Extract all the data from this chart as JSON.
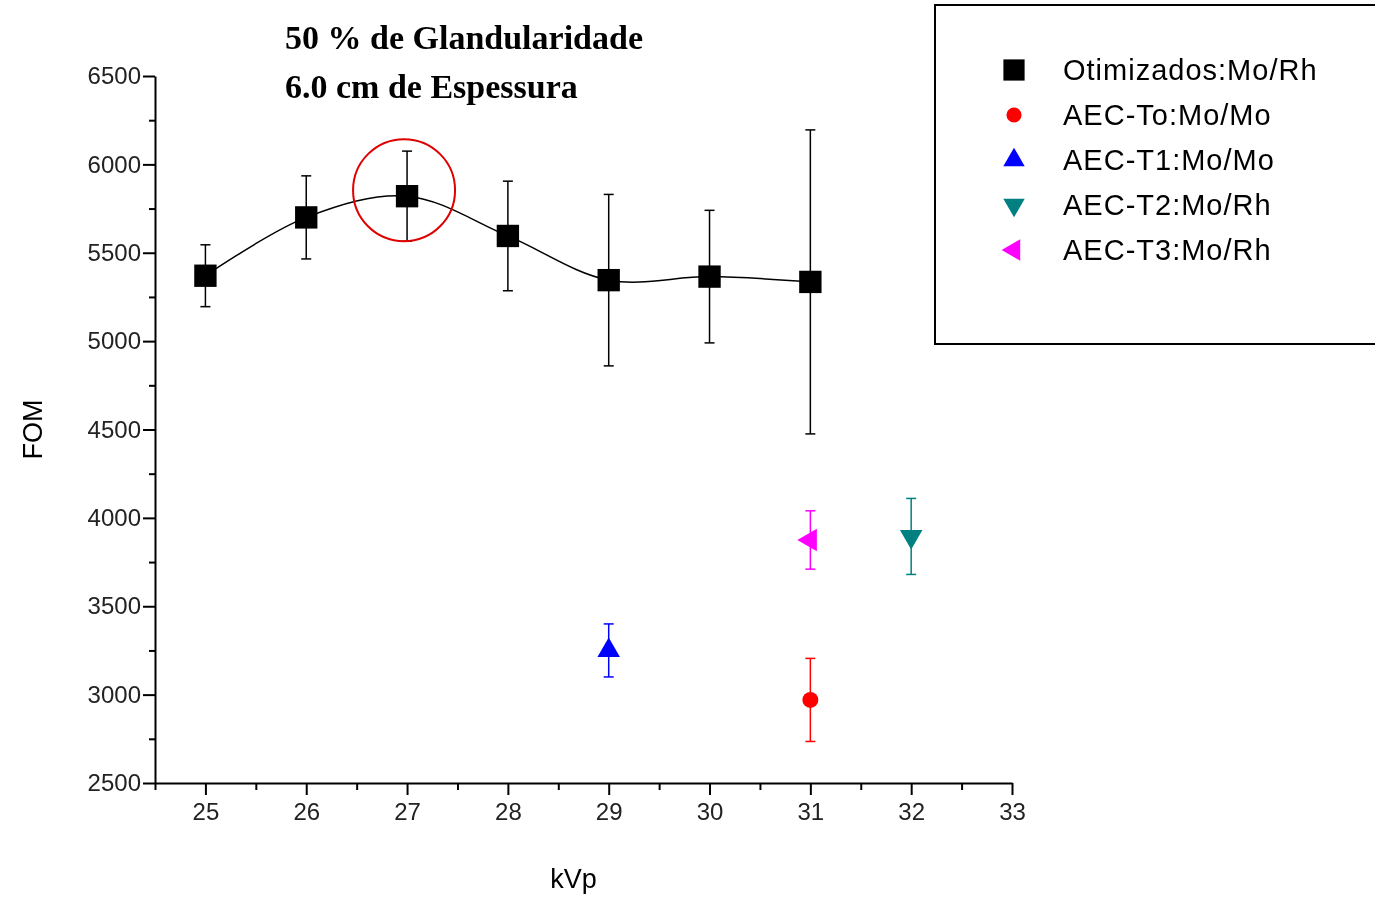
{
  "chart_data": {
    "type": "scatter",
    "title": "50 % de Glandularidade",
    "subtitle": "6.0 cm de Espessura",
    "xlabel": "kVp",
    "ylabel": "FOM",
    "xlim": [
      24.5,
      33
    ],
    "xticks": [
      {
        "value": 24.5,
        "label": null
      },
      25,
      {
        "value": 25.5,
        "label": null
      },
      26,
      {
        "value": 26.5,
        "label": null
      },
      27,
      {
        "value": 27.5,
        "label": null
      },
      28,
      {
        "value": 28.5,
        "label": null
      },
      29,
      {
        "value": 29.5,
        "label": null
      },
      30,
      {
        "value": 30.5,
        "label": null
      },
      31,
      {
        "value": 31.5,
        "label": null
      },
      32,
      {
        "value": 32.5,
        "label": null
      },
      33
    ],
    "ylim": [
      2500,
      6500
    ],
    "yticks": [
      2500,
      {
        "value": 2750,
        "label": null
      },
      3000,
      {
        "value": 3250,
        "label": null
      },
      3500,
      {
        "value": 3750,
        "label": null
      },
      4000,
      {
        "value": 4250,
        "label": null
      },
      4500,
      {
        "value": 4750,
        "label": null
      },
      5000,
      {
        "value": 5250,
        "label": null
      },
      5500,
      {
        "value": 5750,
        "label": null
      },
      6000,
      {
        "value": 6250,
        "label": null
      },
      6500
    ],
    "grid": false,
    "legend": "top right",
    "series": [
      {
        "name": "Otimizados:Mo/Rh",
        "type": "line",
        "marker": "square",
        "color": "#000000",
        "x": [
          25,
          26,
          27,
          28,
          29,
          30,
          31
        ],
        "values": [
          5370,
          5700,
          5820,
          5595,
          5345,
          5365,
          5335
        ],
        "errors": [
          175,
          235,
          255,
          310,
          485,
          375,
          860
        ]
      },
      {
        "name": "AEC-To:Mo/Mo",
        "marker": "circle",
        "color": "#ff0000",
        "x": [
          31
        ],
        "values": [
          2970
        ],
        "errors": [
          235
        ]
      },
      {
        "name": "AEC-T1:Mo/Mo",
        "marker": "triangle",
        "color": "#0000ff",
        "x": [
          29
        ],
        "values": [
          3250
        ],
        "errors": [
          150
        ]
      },
      {
        "name": "AEC-T2:Mo/Rh",
        "marker": "triangle-down",
        "color": "#008080",
        "x": [
          32
        ],
        "values": [
          3895
        ],
        "errors": [
          215
        ]
      },
      {
        "name": "AEC-T3:Mo/Rh",
        "marker": "triangle-left",
        "color": "#ff00ff",
        "x": [
          31
        ],
        "values": [
          3875
        ],
        "errors": [
          165
        ]
      }
    ]
  }
}
